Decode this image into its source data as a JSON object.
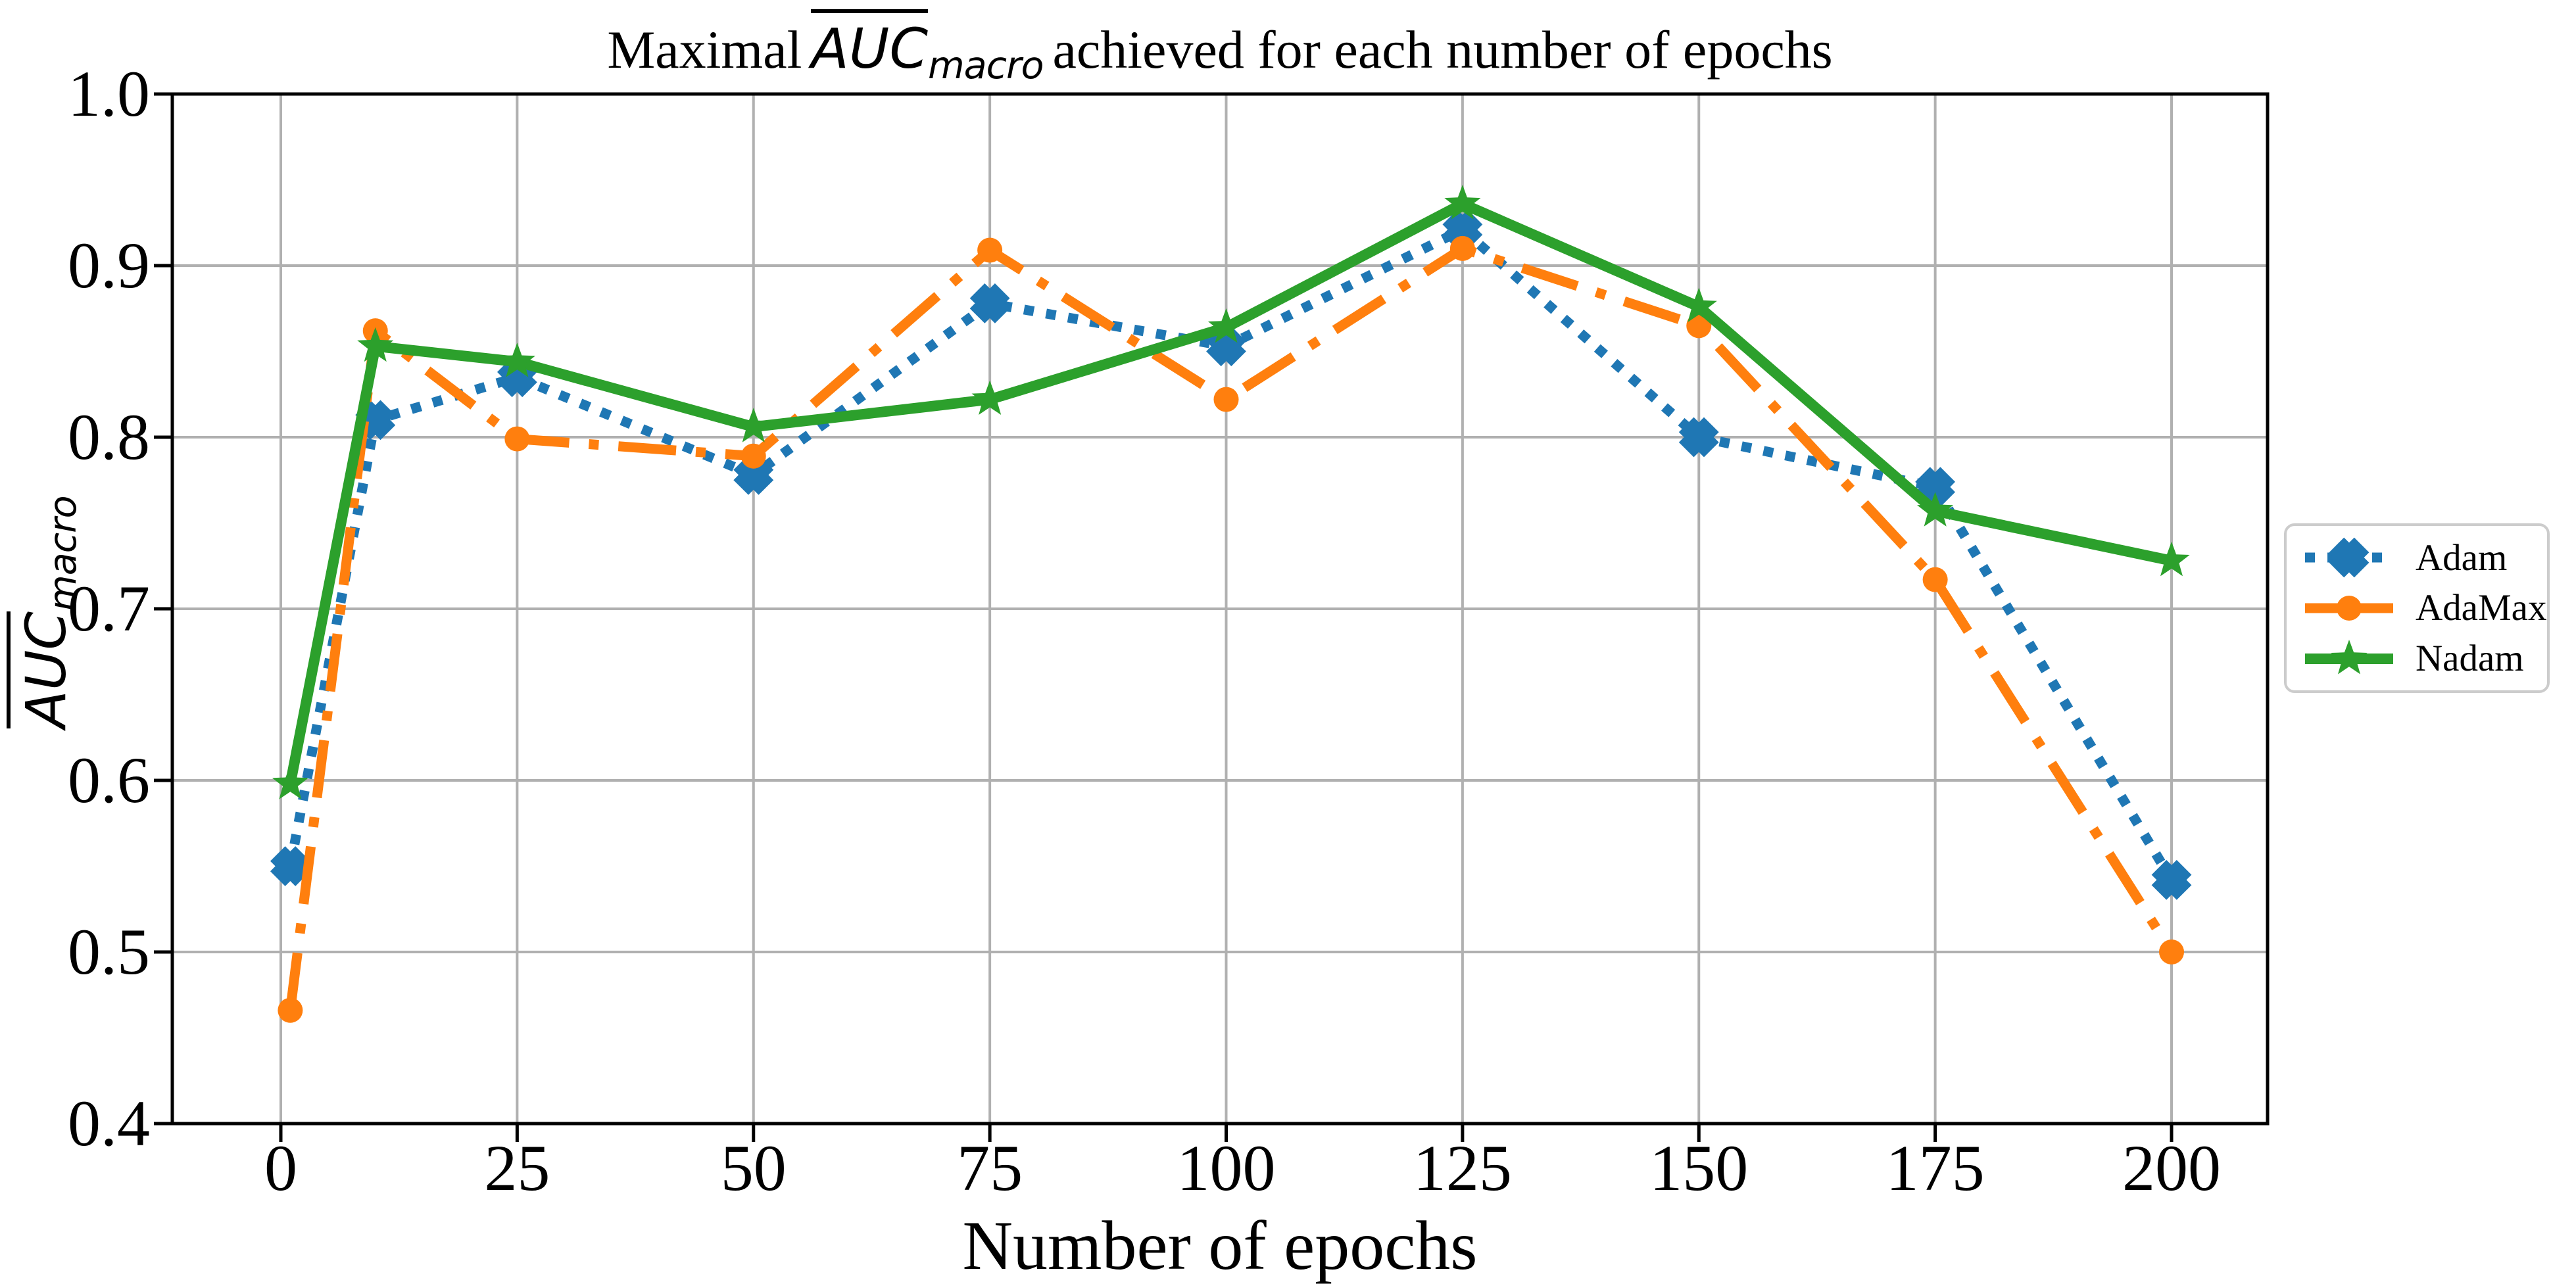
{
  "title": {
    "text_before_math": "Maximal",
    "math": {
      "main": "AUC",
      "overline": true,
      "subscript": "macro"
    },
    "text_after_math": "achieved for each number of epochs"
  },
  "axes": {
    "x": {
      "label": "Number of epochs",
      "tick_values": [
        0,
        25,
        50,
        75,
        100,
        125,
        150,
        175,
        200
      ],
      "tick_labels": [
        "0",
        "25",
        "50",
        "75",
        "100",
        "125",
        "150",
        "175",
        "200"
      ]
    },
    "y": {
      "label_math": {
        "main": "AUC",
        "overline": true,
        "subscript": "macro"
      },
      "tick_values": [
        0.4,
        0.5,
        0.6,
        0.7,
        0.8,
        0.9,
        1.0
      ],
      "tick_labels": [
        "0.4",
        "0.5",
        "0.6",
        "0.7",
        "0.8",
        "0.9",
        "1.0"
      ]
    }
  },
  "legend": {
    "items": [
      {
        "label": "Adam",
        "color": "#1f77b4",
        "marker": "X",
        "linestyle": "dotted"
      },
      {
        "label": "AdaMax",
        "color": "#ff7f0e",
        "marker": "o",
        "linestyle": "dashdot"
      },
      {
        "label": "Nadam",
        "color": "#2ca02c",
        "marker": "star",
        "linestyle": "solid"
      }
    ]
  },
  "colors": {
    "background": "#ffffff",
    "grid": "#b0b0b0",
    "spine": "#000000",
    "legend_border": "#cccccc",
    "adam_blue": "#1f77b4",
    "adamax_orange": "#ff7f0e",
    "nadam_green": "#2ca02c"
  },
  "chart_data": {
    "type": "line",
    "title": "Maximal mean AUC_macro achieved for each number of epochs",
    "xlabel": "Number of epochs",
    "ylabel": "mean AUC_macro",
    "x": [
      1,
      10,
      25,
      50,
      75,
      100,
      125,
      150,
      175,
      200
    ],
    "series": [
      {
        "name": "Adam",
        "color": "#1f77b4",
        "linestyle": "dotted",
        "marker": "X",
        "values": [
          0.55,
          0.81,
          0.835,
          0.778,
          0.878,
          0.853,
          0.921,
          0.8,
          0.771,
          0.542
        ]
      },
      {
        "name": "AdaMax",
        "color": "#ff7f0e",
        "linestyle": "dashdot",
        "marker": "o",
        "values": [
          0.466,
          0.862,
          0.799,
          0.789,
          0.909,
          0.822,
          0.91,
          0.865,
          0.717,
          0.5
        ]
      },
      {
        "name": "Nadam",
        "color": "#2ca02c",
        "linestyle": "solid",
        "marker": "star",
        "values": [
          0.598,
          0.853,
          0.844,
          0.806,
          0.822,
          0.864,
          0.936,
          0.876,
          0.757,
          0.728
        ]
      }
    ],
    "xlim": [
      -11.5,
      210.2
    ],
    "ylim": [
      0.4,
      1.0
    ],
    "grid": true,
    "legend_position": "outside-right"
  }
}
